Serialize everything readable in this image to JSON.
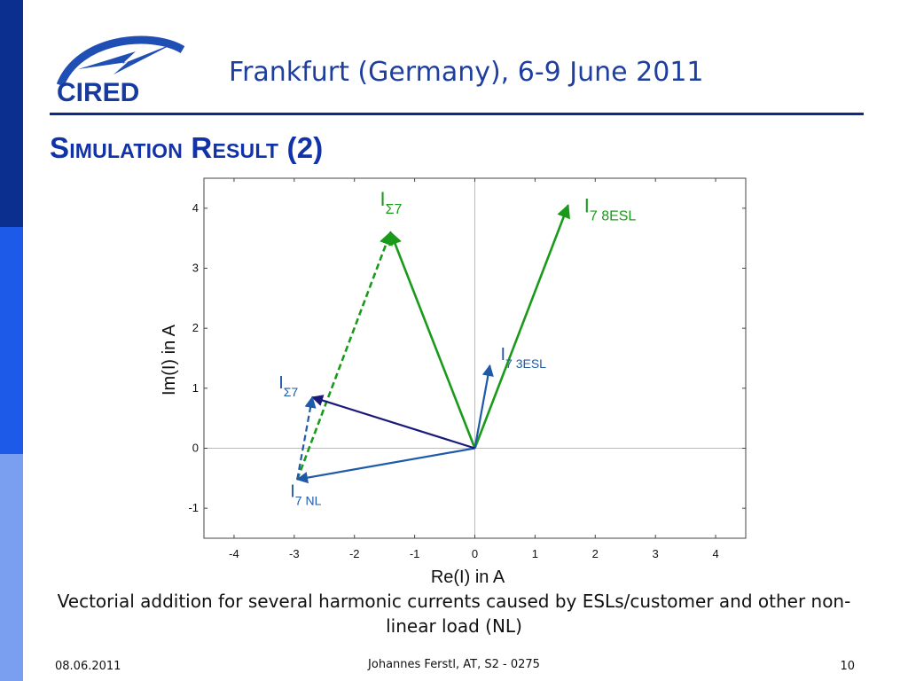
{
  "header": {
    "logo_text": "CIRED",
    "conference": "Frankfurt (Germany), 6-9 June 2011"
  },
  "slide": {
    "title": "Simulation Result (2)"
  },
  "colors": {
    "sidebar_dark": "#0b2f8f",
    "sidebar_mid": "#1e5ae8",
    "sidebar_light": "#7a9ef0",
    "green": "#1a9a1a",
    "blue": "#1f5aa8",
    "navy": "#1a1a7a"
  },
  "chart_data": {
    "type": "scatter",
    "xlabel": "Re(I) in A",
    "ylabel": "Im(I) in A",
    "xlim": [
      -4.5,
      4.5
    ],
    "ylim": [
      -1.5,
      4.5
    ],
    "xticks": [
      -4,
      -3,
      -2,
      -1,
      0,
      1,
      2,
      3,
      4
    ],
    "yticks": [
      -1,
      0,
      1,
      2,
      3,
      4
    ],
    "tick_labels_x": [
      "-4",
      "-3",
      "-2",
      "-1",
      "0",
      "1",
      "2",
      "3",
      "4"
    ],
    "tick_labels_y": [
      "-1",
      "0",
      "1",
      "2",
      "3",
      "4"
    ],
    "grid": false,
    "vectors": [
      {
        "id": "I_7_8ESL",
        "from": [
          0,
          0
        ],
        "to": [
          1.55,
          4.05
        ],
        "color": "green",
        "style": "solid",
        "label": "I",
        "sub": "7 8ESL"
      },
      {
        "id": "I_sum7_big",
        "from": [
          0,
          0
        ],
        "to": [
          -1.4,
          3.6
        ],
        "color": "green",
        "style": "solid",
        "label": "I",
        "sub": "Σ7"
      },
      {
        "id": "I_sum7_big_dashed",
        "from": [
          -2.95,
          -0.52
        ],
        "to": [
          -1.4,
          3.6
        ],
        "color": "green",
        "style": "dashed",
        "label": "",
        "sub": ""
      },
      {
        "id": "I_7_3ESL",
        "from": [
          0,
          0
        ],
        "to": [
          0.25,
          1.38
        ],
        "color": "blue",
        "style": "solid",
        "label": "I",
        "sub": "7 3ESL"
      },
      {
        "id": "I_7_NL",
        "from": [
          0,
          0
        ],
        "to": [
          -2.95,
          -0.52
        ],
        "color": "blue",
        "style": "solid",
        "label": "I",
        "sub": "7 NL"
      },
      {
        "id": "I_sum7_small",
        "from": [
          0,
          0
        ],
        "to": [
          -2.7,
          0.85
        ],
        "color": "navy",
        "style": "solid",
        "label": "I",
        "sub": "Σ7"
      },
      {
        "id": "I_sum7_small_dashed",
        "from": [
          -2.95,
          -0.52
        ],
        "to": [
          -2.7,
          0.85
        ],
        "color": "blue",
        "style": "dashed",
        "label": "",
        "sub": ""
      }
    ]
  },
  "caption": "Vectorial addition for several harmonic currents caused by ESLs/customer and other non-linear load (NL)",
  "footer": {
    "date": "08.06.2011",
    "author": "Johannes Ferstl, AT, S2 - 0275",
    "page": "10"
  }
}
